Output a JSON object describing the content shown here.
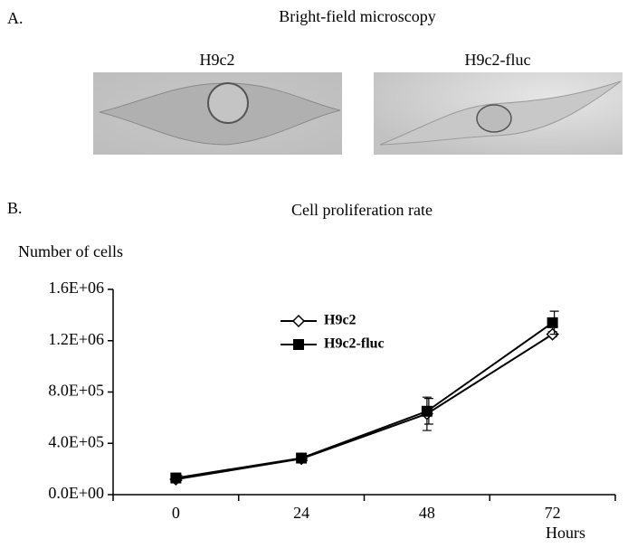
{
  "panel_a": {
    "label": "A.",
    "title": "Bright-field microscopy",
    "images": [
      "H9c2",
      "H9c2-fluc"
    ]
  },
  "panel_b": {
    "label": "B."
  },
  "chart_data": {
    "type": "line",
    "title": "Cell proliferation rate",
    "ylabel": "Number of cells",
    "xlabel": "Hours",
    "categories": [
      "0",
      "24",
      "48",
      "72"
    ],
    "series": [
      {
        "name": "H9c2",
        "color": "#000000",
        "marker": "diamond",
        "values": [
          120000,
          280000,
          630000,
          1250000
        ],
        "errors": [
          10000,
          10000,
          130000,
          20000
        ]
      },
      {
        "name": "H9c2-fluc",
        "color": "#000000",
        "marker": "square",
        "values": [
          130000,
          285000,
          650000,
          1340000
        ],
        "errors": [
          20000,
          20000,
          100000,
          90000
        ]
      }
    ],
    "ylim": [
      0,
      1600000
    ],
    "yticks": [
      {
        "value": 0,
        "label": "0.0E+00"
      },
      {
        "value": 400000,
        "label": "4.0E+05"
      },
      {
        "value": 800000,
        "label": "8.0E+05"
      },
      {
        "value": 1200000,
        "label": "1.2E+06"
      },
      {
        "value": 1600000,
        "label": "1.6E+06"
      }
    ],
    "grid": false,
    "legend": "top-left"
  }
}
